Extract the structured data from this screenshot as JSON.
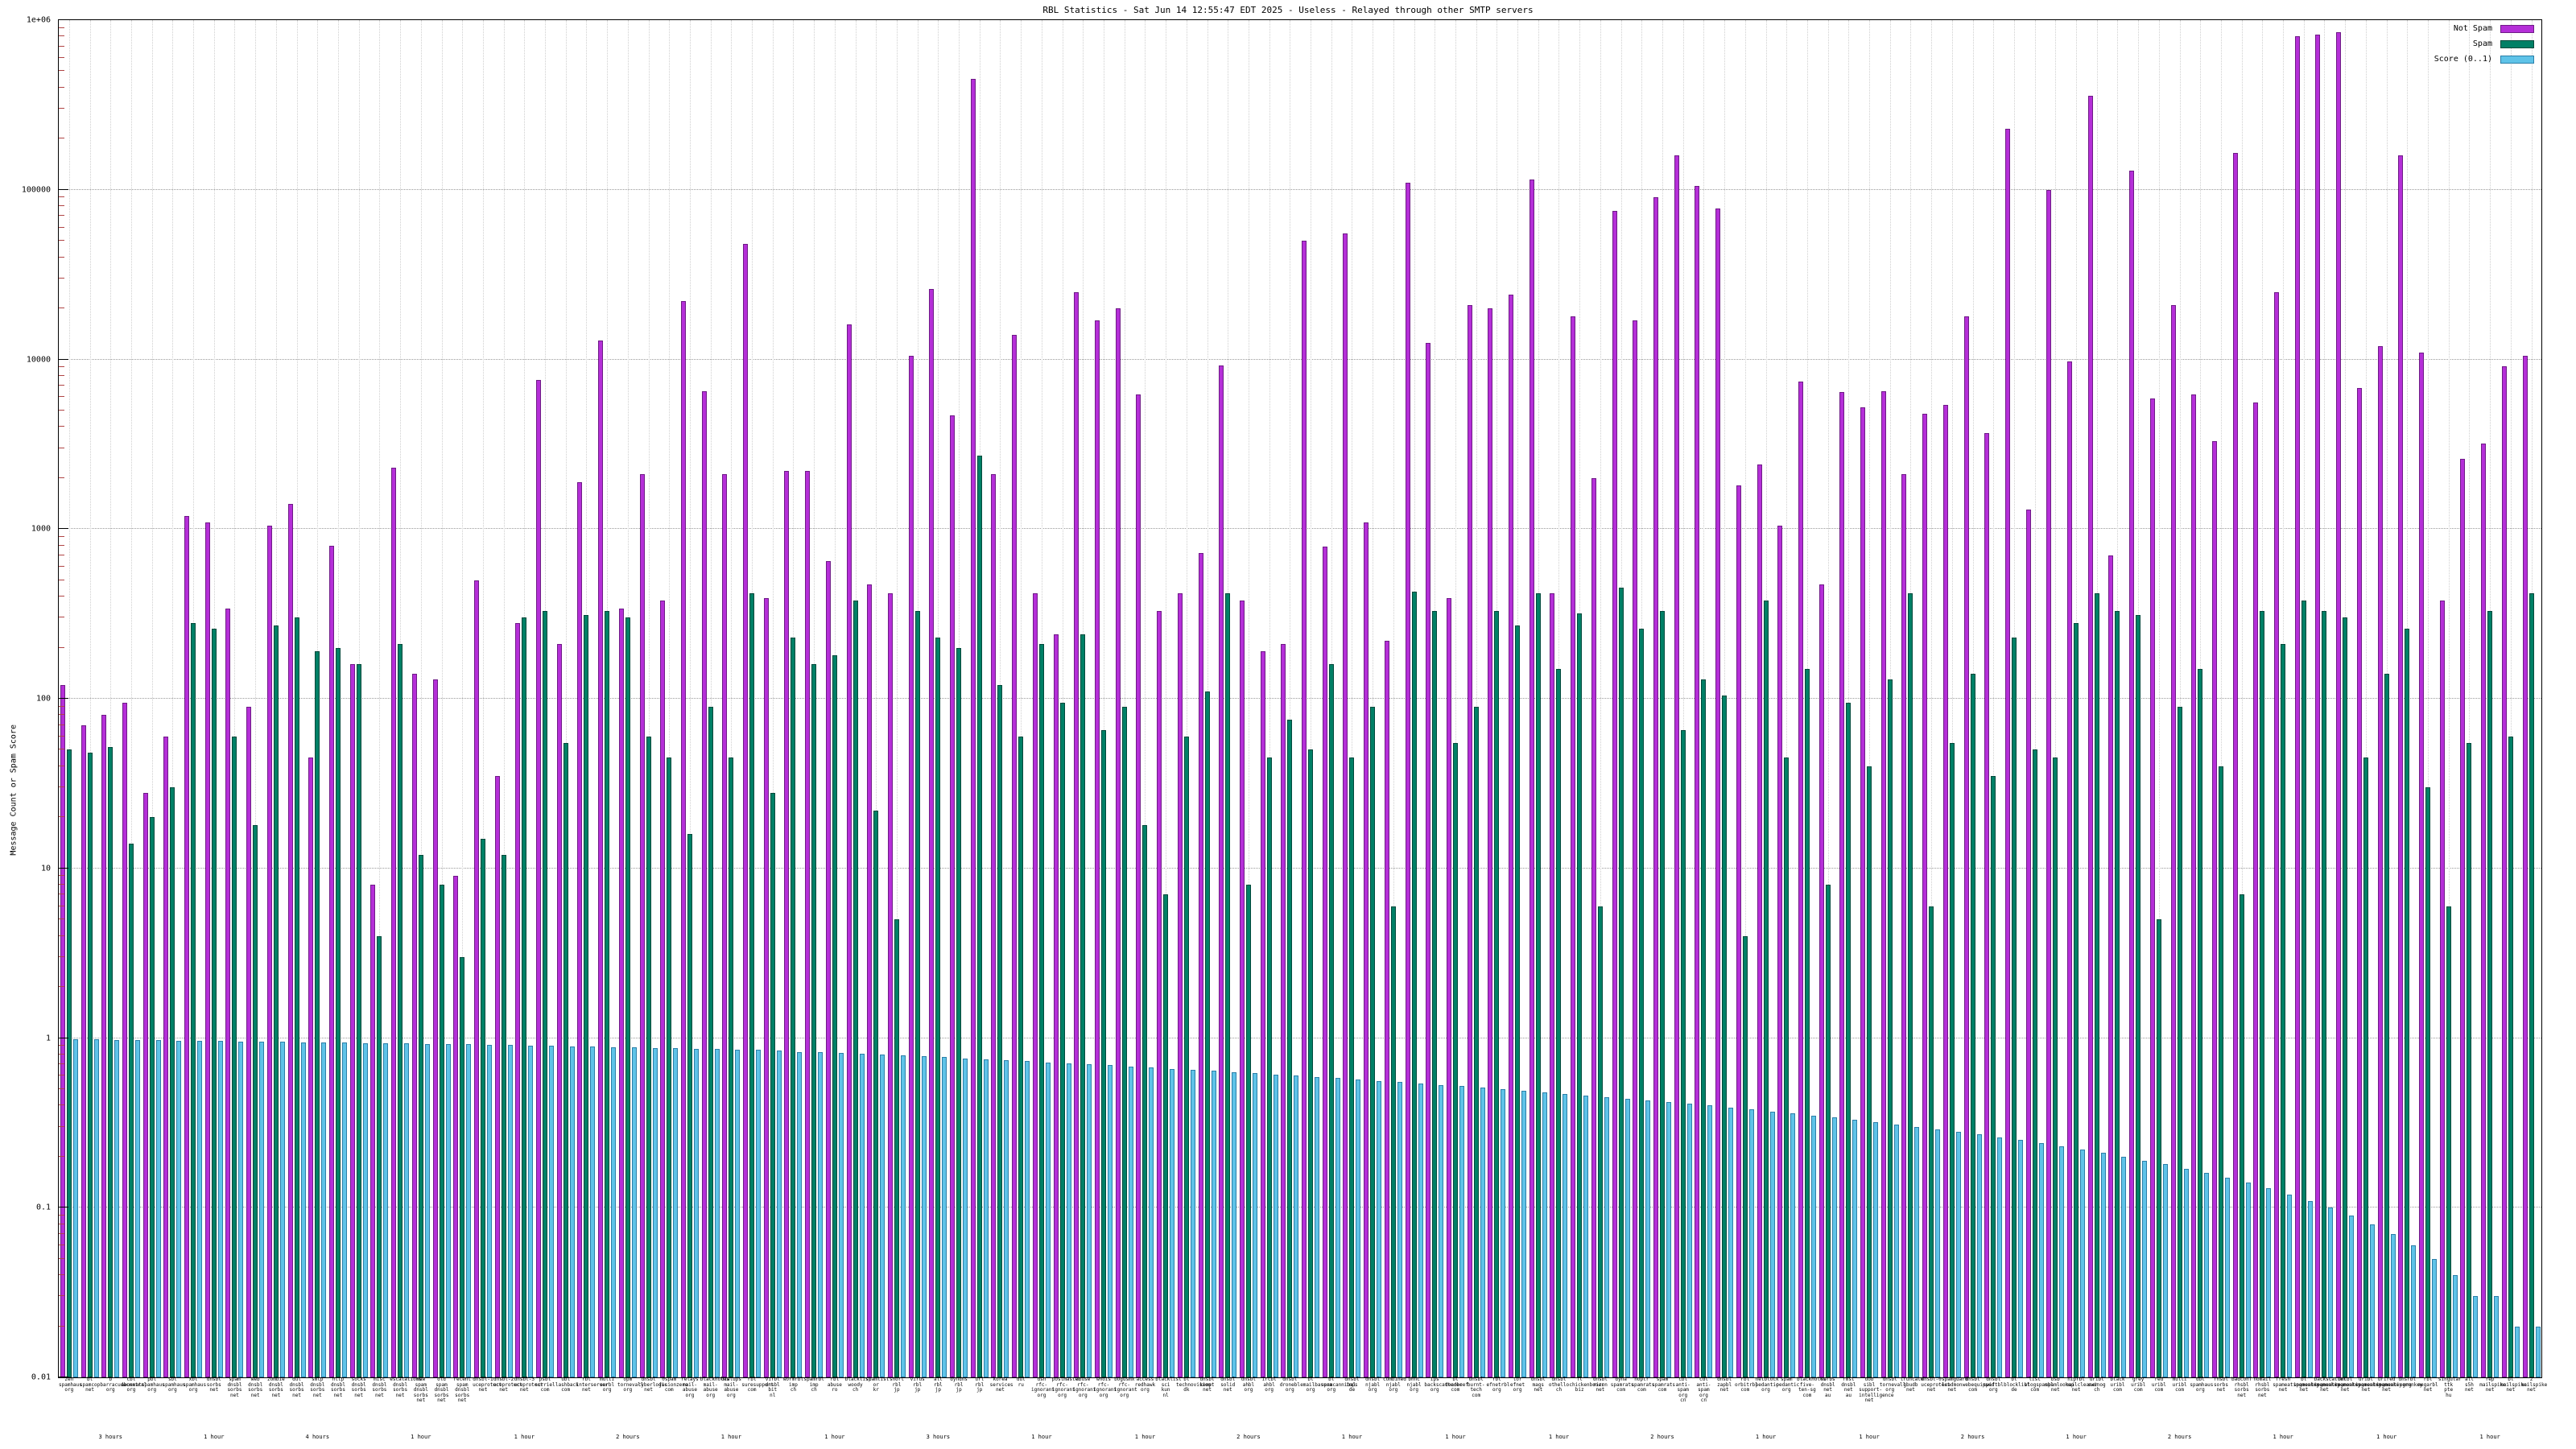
{
  "page": {
    "title": "RBL Statistics - Sat Jun 14 12:55:47 EDT 2025 - Useless - Relayed through other SMTP servers"
  },
  "chart_data": {
    "type": "bar",
    "title": "RBL Statistics - Sat Jun 14 12:55:47 EDT 2025 - Useless - Relayed through other SMTP servers",
    "ylabel": "Message Count or Spam Score",
    "scale": "log",
    "ylim": [
      0.01,
      1000000
    ],
    "grid": true,
    "legend_position": "top-right",
    "yticks": [
      {
        "label": "1e+06",
        "exp": 6
      },
      {
        "label": "100000",
        "exp": 5
      },
      {
        "label": "10000",
        "exp": 4
      },
      {
        "label": "1000",
        "exp": 3
      },
      {
        "label": "100",
        "exp": 2
      },
      {
        "label": "10",
        "exp": 1
      },
      {
        "label": "1",
        "exp": 0
      },
      {
        "label": "0.1",
        "exp": -1
      },
      {
        "label": "0.01",
        "exp": -2
      }
    ],
    "categories": [
      "zen.spamhaus.org",
      "bl.spamcop.net",
      "b.barracudacentral.org",
      "cbl.abuseat.org",
      "pbl.spamhaus.org",
      "sbl.spamhaus.org",
      "xbl.spamhaus.org",
      "dnsbl.sorbs.net",
      "spam.dnsbl.sorbs.net",
      "web.dnsbl.sorbs.net",
      "zombie.dnsbl.sorbs.net",
      "dul.dnsbl.sorbs.net",
      "smtp.dnsbl.sorbs.net",
      "http.dnsbl.sorbs.net",
      "socks.dnsbl.sorbs.net",
      "misc.dnsbl.sorbs.net",
      "escalations.dnsbl.sorbs.net",
      "new.spam.dnsbl.sorbs.net",
      "old.spam.dnsbl.sorbs.net",
      "recent.spam.dnsbl.sorbs.net",
      "dnsbl-1.uceprotect.net",
      "dnsbl-2.uceprotect.net",
      "dnsbl-3.uceprotect.net",
      "psbl.surriel.com",
      "ubl.lashback.com",
      "rbl.interserver.net",
      "multi.surbl.org",
      "opm.tornevall.org",
      "dnsbl.cyberlogic.net",
      "0spam.fusionzero.com",
      "relays.mail-abuse.org",
      "blackholes.mail-abuse.org",
      "dialups.mail-abuse.org",
      "rbl.suresupport.com",
      "virbl.dnsbl.bit.nl",
      "wormrbl.imp.ch",
      "spamrbl.imp.ch",
      "rbl.abuse.ro",
      "blacklist.woody.ch",
      "spamlist.or.kr",
      "short.rbl.jp",
      "virus.rbl.jp",
      "all.rbl.jp",
      "dyndns.rbl.jp",
      "url.rbl.jp",
      "korea.services.net",
      "dul.ru",
      "dsn.rfc-ignorant.org",
      "postmaster.rfc-ignorant.org",
      "abuse.rfc-ignorant.org",
      "whois.rfc-ignorant.org",
      "bogusmx.rfc-ignorant.org",
      "access.redhawk.org",
      "blacklist.sci.kun.nl",
      "bl.technovision.dk",
      "dnsbl.kempt.net",
      "dnsbl.solid.net",
      "dnsbl.ahbl.org",
      "ircbl.ahbl.org",
      "dnsbl.dronebl.org",
      "bl.emailbasura.org",
      "bl.spamcannibal.org",
      "dnsbl.inps.de",
      "dnsbl.njabl.org",
      "combined.njabl.org",
      "bhnc.njabl.org",
      "ips.backscatterer.org",
      "bl.deadbeef.com",
      "dnsbl.burnt-tech.com",
      "rbl.efnetrbl.org",
      "tor.efnet.org",
      "dnsbl.mags.net",
      "dnsbl.othello.ch",
      "fl.chickenboner.biz",
      "dnsbl.rizon.net",
      "dyna.spamrats.com",
      "noptr.spamrats.com",
      "spam.spamrats.com",
      "cbl.anti-spam.org.cn",
      "cdl.anti-spam.org.cn",
      "dnsbl.zapbl.net",
      "rbl.orbitrbl.com",
      "netblock.pedantic.org",
      "spam.pedantic.org",
      "blackholes.five-ten-sg.com",
      "sorbs.dnsbl.net.au",
      "rmst.dnsbl.net.au",
      "dob.sibl.support-intelligence.net",
      "dnsbl.tornevall.org",
      "truncate.gbudb.net",
      "dnsbl-0.uceprotect.net",
      "spamguard.leadmon.net",
      "dnsbl.webequipped.com",
      "dnsbl.swiftbl.org",
      "bl.blocklist.de",
      "list.blogspambl.com",
      "bsb.spamlookup.net",
      "niprbl.mailcleaner.net",
      "uribl.swinog.ch",
      "black.uribl.com",
      "grey.uribl.com",
      "red.uribl.com",
      "multi.uribl.com",
      "dbl.spamhaus.org",
      "rhsbl.sorbs.net",
      "badconf.rhsbl.sorbs.net",
      "nomail.rhsbl.sorbs.net",
      "fresh.spameatingmonkey.net",
      "bl.spameatingmonkey.net",
      "backscatter.spameatingmonkey.net",
      "netbl.spameatingmonkey.net",
      "uribl.spameatingmonkey.net",
      "urired.spameatingmonkey.net",
      "dnsrbl.org",
      "rbl.megarbl.net",
      "singular.ttk.pte.hu",
      "all.s5h.net",
      "rep.mailspike.net",
      "bl.mailspike.net",
      "z.mailspike.net"
    ],
    "durations": {
      "2": "3 hours",
      "7": "1 hour",
      "12": "4 hours",
      "17": "1 hour",
      "22": "1 hour",
      "27": "2 hours",
      "32": "1 hour",
      "37": "1 hour",
      "42": "3 hours",
      "47": "1 hour",
      "52": "1 hour",
      "57": "2 hours",
      "62": "1 hour",
      "67": "1 hour",
      "72": "1 hour",
      "77": "2 hours",
      "82": "1 hour",
      "87": "1 hour",
      "92": "2 hours",
      "97": "1 hour",
      "102": "2 hours",
      "107": "1 hour",
      "112": "1 hour",
      "117": "1 hour"
    },
    "series": [
      {
        "name": "Not Spam",
        "color": "#b52fd8",
        "border": "#6e1b86",
        "values": [
          120,
          70,
          80,
          95,
          28,
          60,
          1200,
          1100,
          340,
          90,
          1050,
          1400,
          45,
          800,
          160,
          8,
          2300,
          140,
          130,
          9,
          500,
          35,
          280,
          7600,
          210,
          1900,
          13000,
          340,
          2100,
          380,
          22000,
          6500,
          2100,
          48000,
          390,
          2200,
          2200,
          650,
          16000,
          470,
          420,
          10500,
          26000,
          4700,
          450000,
          2100,
          14000,
          420,
          240,
          25000,
          17000,
          20000,
          6200,
          330,
          420,
          720,
          9200,
          380,
          190,
          210,
          50000,
          790,
          55000,
          1100,
          220,
          110000,
          12500,
          390,
          21000,
          20000,
          24000,
          115000,
          420,
          18000,
          2000,
          75000,
          17000,
          90000,
          160000,
          105000,
          78000,
          1800,
          2400,
          1050,
          7400,
          470,
          6400,
          5200,
          6500,
          2100,
          4800,
          5400,
          18000,
          3700,
          230000,
          1300,
          100000,
          9700,
          360000,
          700,
          130000,
          5900,
          21000,
          6200,
          3300,
          165000,
          5600,
          25000,
          800000,
          820000,
          850000,
          6800,
          12000,
          160000,
          11000,
          380,
          2600,
          3200,
          9100,
          10500
        ]
      },
      {
        "name": "Spam",
        "color": "#008066",
        "border": "#00493b",
        "values": [
          50,
          48,
          52,
          14,
          20,
          30,
          280,
          260,
          60,
          18,
          270,
          300,
          190,
          200,
          160,
          4,
          210,
          12,
          8,
          3,
          15,
          12,
          300,
          330,
          55,
          310,
          330,
          300,
          60,
          45,
          16,
          90,
          45,
          420,
          28,
          230,
          160,
          180,
          380,
          22,
          5,
          330,
          230,
          200,
          2700,
          120,
          60,
          210,
          95,
          240,
          65,
          90,
          18,
          7,
          60,
          110,
          420,
          8,
          45,
          75,
          50,
          160,
          45,
          90,
          6,
          430,
          330,
          55,
          90,
          330,
          270,
          420,
          150,
          320,
          6,
          450,
          260,
          330,
          65,
          130,
          105,
          4,
          380,
          45,
          150,
          8,
          95,
          40,
          130,
          420,
          6,
          55,
          140,
          35,
          230,
          50,
          45,
          280,
          420,
          330,
          310,
          5,
          90,
          150,
          40,
          7,
          330,
          210,
          380,
          330,
          300,
          45,
          140,
          260,
          30,
          6,
          55,
          330,
          60,
          420
        ]
      },
      {
        "name": "Score (0..1)",
        "color": "#5fc3e8",
        "border": "#2b7fa8",
        "values": [
          0.98,
          0.98,
          0.97,
          0.97,
          0.97,
          0.96,
          0.96,
          0.96,
          0.95,
          0.95,
          0.95,
          0.94,
          0.94,
          0.94,
          0.93,
          0.93,
          0.93,
          0.92,
          0.92,
          0.92,
          0.91,
          0.91,
          0.9,
          0.9,
          0.89,
          0.89,
          0.88,
          0.88,
          0.87,
          0.87,
          0.86,
          0.86,
          0.85,
          0.85,
          0.84,
          0.83,
          0.83,
          0.82,
          0.81,
          0.8,
          0.79,
          0.78,
          0.77,
          0.76,
          0.75,
          0.74,
          0.73,
          0.72,
          0.71,
          0.7,
          0.69,
          0.68,
          0.67,
          0.66,
          0.65,
          0.64,
          0.63,
          0.62,
          0.61,
          0.6,
          0.59,
          0.58,
          0.57,
          0.56,
          0.55,
          0.54,
          0.53,
          0.52,
          0.51,
          0.5,
          0.49,
          0.48,
          0.47,
          0.46,
          0.45,
          0.44,
          0.43,
          0.42,
          0.41,
          0.4,
          0.39,
          0.38,
          0.37,
          0.36,
          0.35,
          0.34,
          0.33,
          0.32,
          0.31,
          0.3,
          0.29,
          0.28,
          0.27,
          0.26,
          0.25,
          0.24,
          0.23,
          0.22,
          0.21,
          0.2,
          0.19,
          0.18,
          0.17,
          0.16,
          0.15,
          0.14,
          0.13,
          0.12,
          0.11,
          0.1,
          0.09,
          0.08,
          0.07,
          0.06,
          0.05,
          0.04,
          0.03,
          0.03,
          0.02,
          0.02
        ]
      }
    ]
  }
}
